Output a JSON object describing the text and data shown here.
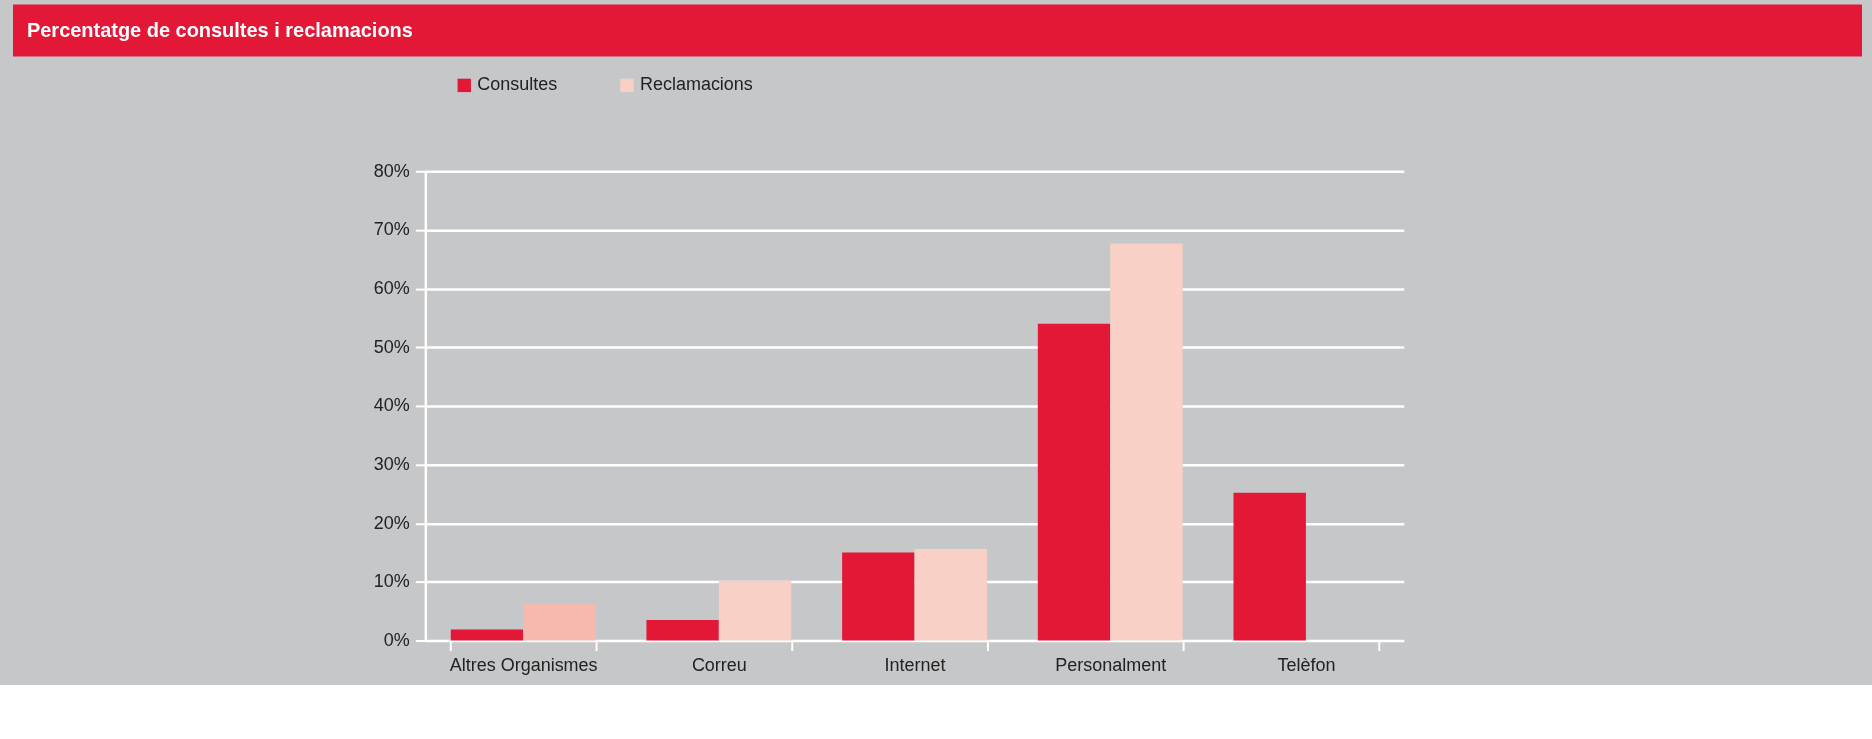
{
  "chart_data": {
    "type": "bar",
    "title": "Percentatge de consultes i reclamacions",
    "categories": [
      "Altres Organismes",
      "Correu",
      "Internet",
      "Personalment",
      "Telèfon"
    ],
    "series": [
      {
        "name": "Consultes",
        "color": "#e31837",
        "values": [
          1.9,
          3.5,
          15.0,
          54,
          25.2
        ]
      },
      {
        "name": "Reclamacions",
        "color": "#f8d0c6",
        "colors": [
          "#f7b9ad",
          "#f8d0c6",
          "#f8d0c6",
          "#f8d0c6",
          "#f8d0c6"
        ],
        "values": [
          6.2,
          10.2,
          15.6,
          67.7,
          0
        ]
      }
    ],
    "ylim": [
      0,
      80
    ],
    "yticks": [
      {
        "value": 0,
        "label": "0%"
      },
      {
        "value": 10,
        "label": "10%"
      },
      {
        "value": 20,
        "label": "20%"
      },
      {
        "value": 30,
        "label": "30%"
      },
      {
        "value": 40,
        "label": "40%"
      },
      {
        "value": 50,
        "label": "50%"
      },
      {
        "value": 60,
        "label": "60%"
      },
      {
        "value": 70,
        "label": "70%"
      },
      {
        "value": 80,
        "label": "80%"
      }
    ],
    "grid": "y",
    "legend": "top left"
  }
}
